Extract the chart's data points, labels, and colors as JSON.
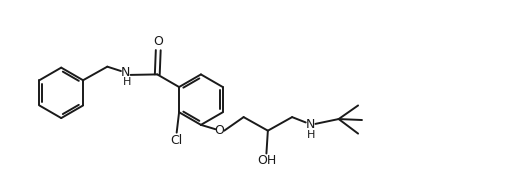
{
  "bg_color": "#ffffff",
  "line_color": "#1a1a1a",
  "line_width": 1.4,
  "figsize": [
    5.26,
    1.76
  ],
  "dpi": 100,
  "xlim": [
    0,
    10.52
  ],
  "ylim": [
    -1.2,
    2.4
  ]
}
